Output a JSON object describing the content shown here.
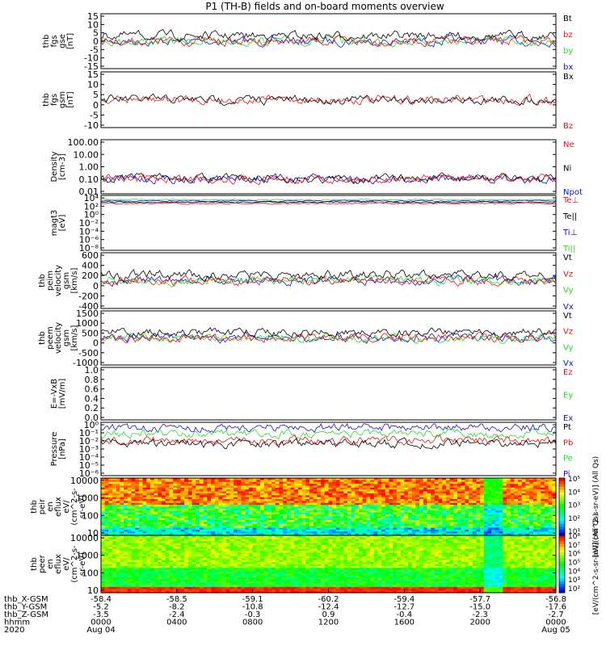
{
  "title": "P1 (TH-B) fields and on-board moments overview",
  "colors": {
    "black": "#000000",
    "red": "#ee1111",
    "green": "#22dd22",
    "blue": "#1111cc"
  },
  "chart_data": [
    {
      "type": "line",
      "panel": "fgs_gse",
      "ylabel": [
        "thb",
        "fgs",
        "gse",
        "[nT]"
      ],
      "yticks": [
        "15",
        "10",
        "5",
        "0",
        "-5",
        "-10",
        "-15"
      ],
      "ylim": [
        -15,
        15
      ],
      "legend": [
        {
          "label": "Bt",
          "color": "#000000"
        },
        {
          "label": "bz",
          "color": "#ee1111"
        },
        {
          "label": "by",
          "color": "#22dd22"
        },
        {
          "label": "bx",
          "color": "#1111cc"
        }
      ]
    },
    {
      "type": "line",
      "panel": "fgs_gsm",
      "ylabel": [
        "thb",
        "fgs",
        "gsm",
        "[nT]"
      ],
      "yticks": [
        "15",
        "10",
        "5",
        "0",
        "-5",
        "-10"
      ],
      "ylim": [
        -12,
        16
      ],
      "legend": [
        {
          "label": "Bx",
          "color": "#000000"
        },
        {
          "label": "Bz",
          "color": "#ee1111"
        }
      ]
    },
    {
      "type": "line",
      "panel": "density",
      "ylabel": [
        "Density",
        "[cm-3]"
      ],
      "yticks": [
        "100.00",
        "10.00",
        "1.00",
        "0.10",
        "0.01"
      ],
      "ylim": [
        0.01,
        300
      ],
      "log": true,
      "legend": [
        {
          "label": "Ne",
          "color": "#ee1111"
        },
        {
          "label": "Ni",
          "color": "#000000"
        },
        {
          "label": "Npot",
          "color": "#1111cc"
        }
      ]
    },
    {
      "type": "line",
      "panel": "temperature",
      "ylabel": [
        "magt3",
        "[eV]"
      ],
      "yticks": [
        "10⁴",
        "10²",
        "10⁰",
        "10⁻²",
        "10⁻⁴",
        "10⁻⁶",
        "10⁻⁸"
      ],
      "ylim": [
        1e-09,
        100000.0
      ],
      "log": true,
      "legend": [
        {
          "label": "Te⊥",
          "color": "#ee1111"
        },
        {
          "label": "Te||",
          "color": "#000000"
        },
        {
          "label": "Ti⊥",
          "color": "#1111cc"
        },
        {
          "label": "Ti||",
          "color": "#22dd22"
        }
      ]
    },
    {
      "type": "line",
      "panel": "peim_velocity",
      "ylabel": [
        "thb",
        "peim",
        "velocity",
        "gsm",
        "[km/s]"
      ],
      "yticks": [
        "600",
        "400",
        "200",
        "0",
        "-200",
        "-400"
      ],
      "ylim": [
        -400,
        600
      ],
      "legend": [
        {
          "label": "Vt",
          "color": "#000000"
        },
        {
          "label": "Vz",
          "color": "#ee1111"
        },
        {
          "label": "Vy",
          "color": "#22dd22"
        },
        {
          "label": "Vx",
          "color": "#1111cc"
        }
      ]
    },
    {
      "type": "line",
      "panel": "peem_velocity",
      "ylabel": [
        "thb",
        "peem",
        "velocity",
        "gsm",
        "[km/s]"
      ],
      "yticks": [
        "1500",
        "1000",
        "500",
        "0",
        "-500",
        "-1000"
      ],
      "ylim": [
        -1200,
        1600
      ],
      "legend": [
        {
          "label": "Vt",
          "color": "#000000"
        },
        {
          "label": "Vz",
          "color": "#ee1111"
        },
        {
          "label": "Vy",
          "color": "#22dd22"
        },
        {
          "label": "Vx",
          "color": "#1111cc"
        }
      ]
    },
    {
      "type": "line",
      "panel": "efield",
      "ylabel": [
        "E=-VxB",
        "[mV/m]"
      ],
      "yticks": [
        "1.0",
        "0.8",
        "0.6",
        "0.4",
        "0.2",
        "0.0"
      ],
      "ylim": [
        0,
        1
      ],
      "legend": [
        {
          "label": "Ez",
          "color": "#ee1111"
        },
        {
          "label": "Ey",
          "color": "#22dd22"
        },
        {
          "label": "Ex",
          "color": "#1111cc"
        }
      ]
    },
    {
      "type": "line",
      "panel": "pressure",
      "ylabel": [
        "Pressure",
        "[nPa]"
      ],
      "yticks": [
        "10⁰",
        "10⁻¹",
        "10⁻²",
        "10⁻³",
        "10⁻⁴",
        "10⁻⁵",
        "10⁻⁶"
      ],
      "ylim": [
        1e-07,
        1
      ],
      "log": true,
      "legend": [
        {
          "label": "Pt",
          "color": "#000000"
        },
        {
          "label": "Pb",
          "color": "#ee1111"
        },
        {
          "label": "Pe",
          "color": "#22dd22"
        },
        {
          "label": "Pi",
          "color": "#1111cc"
        }
      ]
    },
    {
      "type": "heatmap",
      "panel": "peir_eflux",
      "ylabel": [
        "thb",
        "peir",
        "en",
        "eflux",
        "eV/",
        "(cm^2-s-",
        "sr-eV)"
      ],
      "yticks": [
        "10000",
        "1000",
        "100",
        "10"
      ],
      "ylim": [
        5,
        30000
      ],
      "log": true,
      "colorbar": {
        "ticks": [
          "10⁵",
          "10⁴",
          "10³",
          "10²",
          "10¹"
        ],
        "label": "[eV/(cm^2-s-sr-eV)] (All Qs)"
      }
    },
    {
      "type": "heatmap",
      "panel": "peer_eflux",
      "ylabel": [
        "thb",
        "peer",
        "en",
        "eflux",
        "eV/",
        "(cm^2-s-",
        "sr-eV)"
      ],
      "yticks": [
        "10000",
        "1000",
        "100",
        "10"
      ],
      "ylim": [
        5,
        30000
      ],
      "log": true,
      "colorbar": {
        "ticks": [
          "10⁸",
          "10⁷",
          "10⁶",
          "10⁵",
          "10⁴",
          "10³",
          "10²"
        ],
        "label": "[eV/(cm^2-s-sr-eV)] (All Qs)"
      }
    }
  ],
  "xaxis": {
    "rows": [
      {
        "label": "thb_X-GSM",
        "values": [
          "-58.4",
          "-58.5",
          "-59.1",
          "-60.2",
          "-59.4",
          "-57.7",
          "-56.8"
        ]
      },
      {
        "label": "thb_Y-GSM",
        "values": [
          "-5.2",
          "-8.2",
          "-10.8",
          "-12.4",
          "-12.7",
          "-15.0",
          "-17.6"
        ]
      },
      {
        "label": "thb_Z-GSM",
        "values": [
          "-3.5",
          "-2.4",
          "-0.3",
          "0.9",
          "-0.4",
          "-2.3",
          "-2.7"
        ]
      },
      {
        "label": "hhmm",
        "values": [
          "0000",
          "0400",
          "0800",
          "1200",
          "1600",
          "2000",
          "0000"
        ]
      },
      {
        "label": "2020",
        "values": [
          "Aug 04",
          "",
          "",
          "",
          "",
          "",
          "Aug 05"
        ]
      }
    ]
  }
}
